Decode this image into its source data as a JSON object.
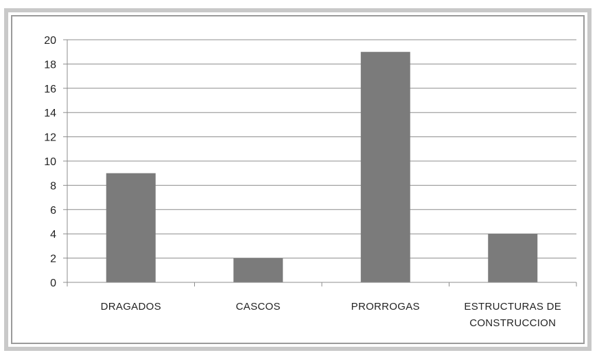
{
  "chart_data": {
    "type": "bar",
    "categories": [
      [
        "DRAGADOS"
      ],
      [
        "CASCOS"
      ],
      [
        "PRORROGAS"
      ],
      [
        "ESTRUCTURAS DE",
        "CONSTRUCCION"
      ]
    ],
    "values": [
      9,
      2,
      19,
      4
    ],
    "ylim": [
      0,
      20
    ],
    "yticks": [
      0,
      2,
      4,
      6,
      8,
      10,
      12,
      14,
      16,
      18,
      20
    ],
    "grid": true,
    "legend": "none",
    "colors": {
      "bar": "#7b7b7b",
      "grid": "#8c8c8c",
      "axis": "#8c8c8c"
    }
  }
}
